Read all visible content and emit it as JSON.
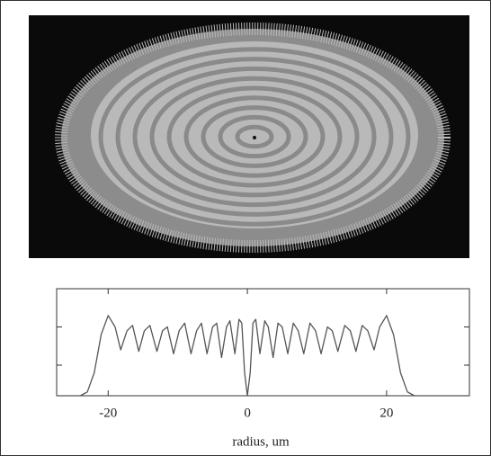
{
  "chart_data": {
    "type": "line",
    "x_label": "radius, um",
    "x": [
      -27.4,
      -24,
      -23,
      -22,
      -21,
      -20,
      -19,
      -18.2,
      -17.3,
      -16.5,
      -15.6,
      -14.8,
      -14,
      -13,
      -12.2,
      -11.5,
      -10.6,
      -9.8,
      -9,
      -8.1,
      -7.3,
      -6.6,
      -5.8,
      -5,
      -4.4,
      -3.7,
      -3,
      -2.5,
      -1.8,
      -1.2,
      -0.8,
      -0.4,
      0,
      0.4,
      0.8,
      1.2,
      1.8,
      2.5,
      3,
      3.7,
      4.4,
      5,
      5.8,
      6.6,
      7.3,
      8.1,
      9,
      9.8,
      10.6,
      11.5,
      12.2,
      13,
      14,
      14.8,
      15.6,
      16.5,
      17.3,
      18.2,
      19,
      20,
      21,
      22,
      23,
      24,
      31.9
    ],
    "values": [
      0,
      0,
      0.05,
      0.3,
      0.8,
      1.05,
      0.9,
      0.6,
      0.85,
      0.92,
      0.58,
      0.85,
      0.92,
      0.58,
      0.85,
      0.9,
      0.55,
      0.85,
      0.95,
      0.55,
      0.85,
      0.95,
      0.55,
      0.9,
      0.95,
      0.5,
      0.9,
      0.98,
      0.55,
      1.0,
      0.95,
      0.3,
      0,
      0.3,
      0.95,
      1.0,
      0.55,
      0.98,
      0.9,
      0.5,
      0.95,
      0.9,
      0.55,
      0.95,
      0.85,
      0.55,
      0.95,
      0.85,
      0.55,
      0.9,
      0.85,
      0.58,
      0.92,
      0.85,
      0.58,
      0.92,
      0.85,
      0.6,
      0.9,
      1.05,
      0.8,
      0.3,
      0.05,
      0,
      0
    ],
    "color": "#555555",
    "xlim": [
      -27.4,
      31.9
    ],
    "ylim": [
      0,
      1.4
    ],
    "xticks": [
      -20,
      0,
      20
    ],
    "yticks": [
      0.4,
      0.9
    ]
  }
}
